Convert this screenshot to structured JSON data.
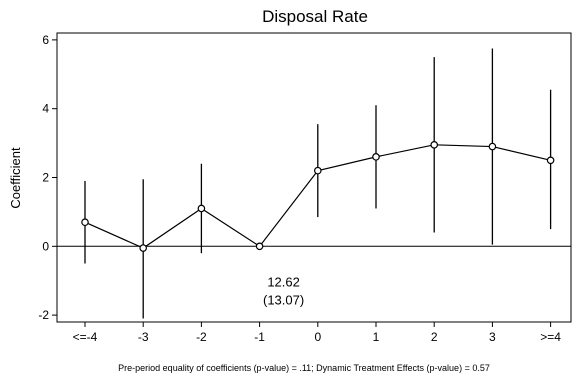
{
  "chart_data": {
    "type": "line",
    "title": "Disposal Rate",
    "ylabel": "Coefficient",
    "xlabel": "",
    "categories": [
      "<=-4",
      "-3",
      "-2",
      "-1",
      "0",
      "1",
      "2",
      "3",
      ">=4"
    ],
    "series": [
      {
        "values": [
          0.7,
          -0.05,
          1.1,
          0.0,
          2.2,
          2.6,
          2.95,
          2.9,
          2.5
        ],
        "ci_lower": [
          -0.5,
          -2.1,
          -0.2,
          0.0,
          0.85,
          1.1,
          0.4,
          0.05,
          0.5
        ],
        "ci_upper": [
          1.9,
          1.95,
          2.4,
          0.0,
          3.55,
          4.1,
          5.5,
          5.75,
          4.55
        ]
      }
    ],
    "ylim": [
      -2.2,
      6.2
    ],
    "yticks": [
      -2,
      0,
      2,
      4,
      6
    ],
    "reference_line": 0,
    "annotation": {
      "line1": "12.62",
      "line2": "(13.07)",
      "anchor_category": "-1",
      "anchor_y": -0.5
    },
    "note": "Pre-period equality of coefficients (p-value) = .11; Dynamic Treatment Effects (p-value) = 0.57",
    "grid": false,
    "legend": "none"
  }
}
